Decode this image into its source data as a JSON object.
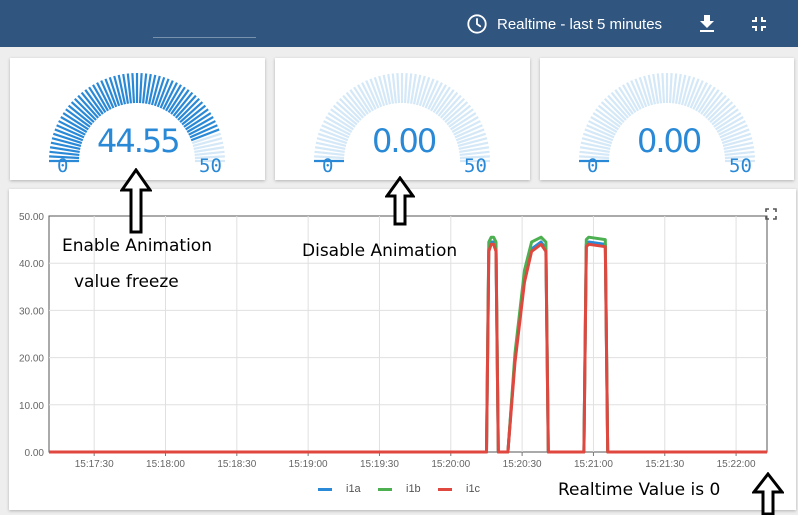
{
  "header": {
    "realtime_label": "Realtime - last 5 minutes",
    "icons": [
      "clock-icon",
      "download-icon",
      "exit-fullscreen-icon"
    ]
  },
  "gauges": [
    {
      "value": "44.55",
      "numeric": 44.55,
      "min": "0",
      "max": "50",
      "fraction": 0.891
    },
    {
      "value": "0.00",
      "numeric": 0,
      "min": "0",
      "max": "50",
      "fraction": 0
    },
    {
      "value": "0.00",
      "numeric": 0,
      "min": "0",
      "max": "50",
      "fraction": 0
    }
  ],
  "colors": {
    "gauge_active": "#2a89d6",
    "gauge_inactive": "#d4e8f7",
    "header": "#305680",
    "i1a": "#2a8ad8",
    "i1b": "#4caf50",
    "i1c": "#e0473e"
  },
  "annotations": {
    "enable_line1": "Enable Animation",
    "enable_line2": "value freeze",
    "disable": "Disable Animation",
    "realtime": "Realtime Value is 0"
  },
  "chart_data": {
    "type": "line",
    "ylim": [
      0,
      50
    ],
    "y_ticks": [
      "0.00",
      "10.00",
      "20.00",
      "30.00",
      "40.00",
      "50.00"
    ],
    "x_ticks": [
      "15:17:30",
      "15:18:00",
      "15:18:30",
      "15:19:00",
      "15:19:30",
      "15:20:00",
      "15:20:30",
      "15:21:00",
      "15:21:30",
      "15:22:00"
    ],
    "xlim": [
      "15:17:11",
      "15:22:13"
    ],
    "grid": true,
    "legend_position": "bottom",
    "series": [
      {
        "name": "i1a",
        "color": "#2a8ad8",
        "x": [
          "15:17:11",
          "15:20:15",
          "15:20:16",
          "15:20:17",
          "15:20:18",
          "15:20:19",
          "15:20:20",
          "15:20:24",
          "15:20:27",
          "15:20:31",
          "15:20:34",
          "15:20:38",
          "15:20:40",
          "15:20:41",
          "15:20:42",
          "15:20:56",
          "15:20:57",
          "15:20:58",
          "15:21:05",
          "15:21:06",
          "15:21:07",
          "15:22:13"
        ],
        "y": [
          0,
          0,
          43,
          44.5,
          44.5,
          43,
          0,
          0,
          20,
          37,
          43,
          44.5,
          43,
          0,
          0,
          0,
          44,
          44.5,
          44,
          0,
          0,
          0
        ]
      },
      {
        "name": "i1b",
        "color": "#4caf50",
        "x": [
          "15:17:11",
          "15:20:15",
          "15:20:16",
          "15:20:17",
          "15:20:18",
          "15:20:19",
          "15:20:20",
          "15:20:24",
          "15:20:27",
          "15:20:31",
          "15:20:34",
          "15:20:38",
          "15:20:40",
          "15:20:41",
          "15:20:42",
          "15:20:56",
          "15:20:57",
          "15:20:58",
          "15:21:05",
          "15:21:06",
          "15:21:07",
          "15:22:13"
        ],
        "y": [
          0,
          0,
          44.5,
          45.5,
          45.5,
          44.5,
          0,
          0,
          21,
          38.5,
          44.5,
          45.5,
          44.5,
          0,
          0,
          0,
          45,
          45.5,
          45,
          0,
          0,
          0
        ]
      },
      {
        "name": "i1c",
        "color": "#e0473e",
        "x": [
          "15:17:11",
          "15:20:15",
          "15:20:16",
          "15:20:17",
          "15:20:18",
          "15:20:19",
          "15:20:20",
          "15:20:24",
          "15:20:27",
          "15:20:31",
          "15:20:34",
          "15:20:38",
          "15:20:40",
          "15:20:41",
          "15:20:42",
          "15:20:56",
          "15:20:57",
          "15:20:58",
          "15:21:05",
          "15:21:06",
          "15:21:07",
          "15:22:13"
        ],
        "y": [
          0,
          0,
          42.5,
          44,
          44,
          42.5,
          0,
          0,
          19,
          36,
          42.5,
          44,
          42.5,
          0,
          0,
          0,
          43.5,
          44,
          43.5,
          0,
          0,
          0
        ]
      }
    ]
  }
}
